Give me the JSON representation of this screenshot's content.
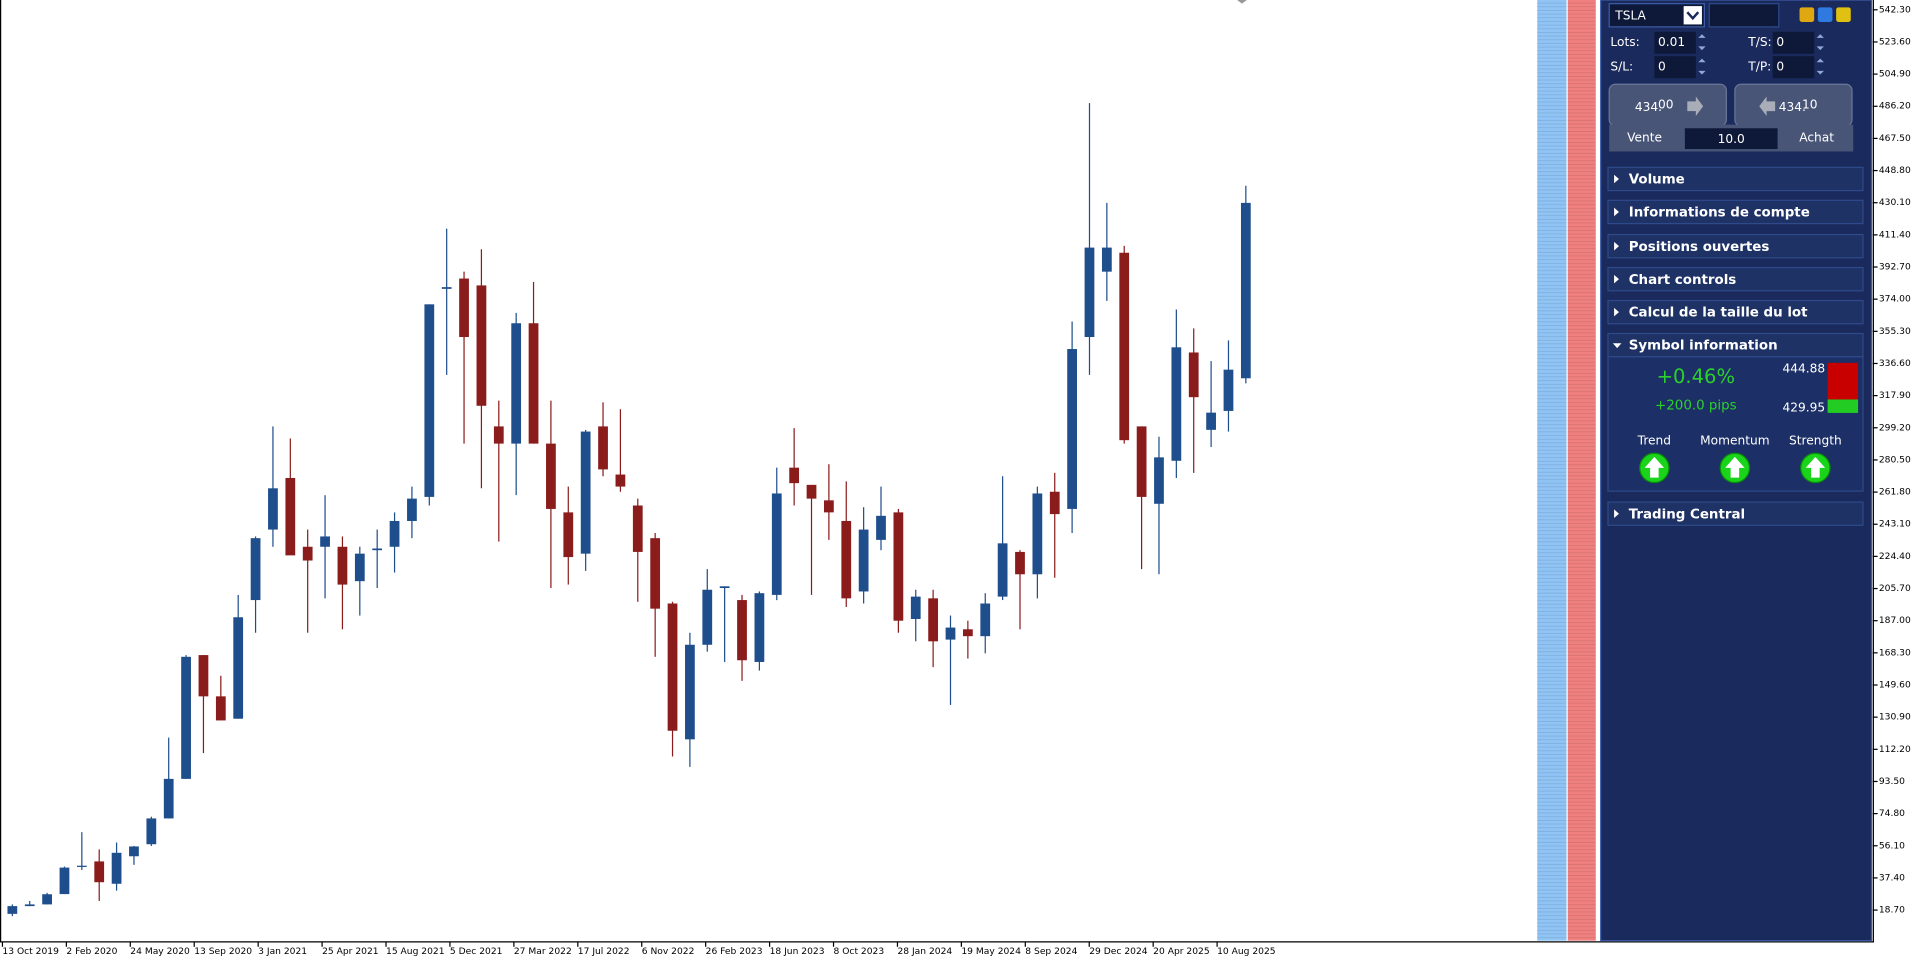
{
  "chart_data": {
    "type": "candlestick",
    "up_color": "#1f4e8c",
    "down_color": "#8b1c1c",
    "open": [
      16.5,
      21,
      22,
      28,
      44,
      47,
      34,
      50,
      57,
      72,
      95,
      167,
      143,
      130,
      199,
      240,
      270,
      230,
      230,
      230,
      210,
      228,
      230,
      245,
      259,
      380,
      386,
      382,
      300,
      290,
      360,
      290,
      250,
      226,
      300,
      272,
      254,
      235,
      197,
      118,
      173,
      206,
      199,
      163,
      202,
      276,
      266,
      257,
      245,
      204,
      234,
      250,
      188,
      200,
      176,
      182,
      178,
      201,
      227,
      214,
      262,
      252,
      352,
      390,
      401,
      300,
      255,
      280,
      343,
      298,
      309,
      328
    ],
    "high": [
      22,
      24,
      28.7,
      44,
      64,
      54,
      58,
      56,
      73,
      119,
      167,
      167,
      155,
      202,
      236,
      300,
      293,
      240,
      260,
      236,
      230,
      240,
      250,
      265,
      371,
      415,
      390,
      403,
      315,
      366,
      384,
      315,
      265,
      298,
      314,
      310,
      258,
      238,
      198,
      180,
      217,
      207,
      202,
      204,
      276,
      299,
      266,
      278,
      268,
      253,
      265,
      252,
      205,
      205,
      190,
      187,
      203,
      271,
      228,
      265,
      273,
      361,
      488,
      430,
      405,
      300,
      294,
      368,
      357,
      338,
      350,
      440
    ],
    "low": [
      15.2,
      21,
      22,
      28,
      42,
      24,
      30,
      45,
      56,
      72,
      95,
      110,
      129,
      130,
      180,
      230,
      226,
      180,
      200,
      182,
      190,
      206,
      215,
      235,
      254,
      330,
      290,
      264,
      233,
      260,
      290,
      206,
      208,
      216,
      271,
      262,
      198,
      166,
      108,
      102,
      169,
      163,
      152,
      158,
      199,
      254,
      202,
      234,
      195,
      197,
      228,
      180,
      175,
      160,
      138,
      165,
      168,
      199,
      182,
      200,
      212,
      238,
      330,
      373,
      290,
      217,
      214,
      270,
      273,
      288,
      297,
      325
    ],
    "close": [
      21,
      22,
      27.9,
      43.4,
      44.5,
      34.9,
      52,
      55.7,
      72,
      95,
      166,
      143,
      129,
      189,
      235,
      264,
      225,
      222,
      236,
      208,
      226,
      229,
      245,
      258,
      371,
      381,
      352,
      312,
      290,
      360,
      290,
      252,
      224,
      297,
      275,
      265,
      227,
      194,
      123,
      173,
      205,
      207,
      164,
      203,
      261,
      267,
      258,
      250,
      200,
      240,
      248,
      187,
      201,
      175,
      183,
      178,
      197,
      232,
      214,
      261,
      249,
      345,
      404,
      404,
      292,
      259,
      282,
      346,
      317,
      308,
      333,
      430
    ],
    "ylim": [
      0.9,
      548
    ],
    "yticks": [
      {
        "value": 18.7,
        "label": "18.70"
      },
      {
        "value": 37.4,
        "label": "37.40"
      },
      {
        "value": 56.1,
        "label": "56.10"
      },
      {
        "value": 74.8,
        "label": "74.80"
      },
      {
        "value": 93.5,
        "label": "93.50"
      },
      {
        "value": 112.2,
        "label": "112.20"
      },
      {
        "value": 130.9,
        "label": "130.90"
      },
      {
        "value": 149.6,
        "label": "149.60"
      },
      {
        "value": 168.3,
        "label": "168.30"
      },
      {
        "value": 187,
        "label": "187.00"
      },
      {
        "value": 205.7,
        "label": "205.70"
      },
      {
        "value": 224.4,
        "label": "224.40"
      },
      {
        "value": 243.1,
        "label": "243.10"
      },
      {
        "value": 261.8,
        "label": "261.80"
      },
      {
        "value": 280.5,
        "label": "280.50"
      },
      {
        "value": 299.2,
        "label": "299.20"
      },
      {
        "value": 317.9,
        "label": "317.90"
      },
      {
        "value": 336.6,
        "label": "336.60"
      },
      {
        "value": 355.3,
        "label": "355.30"
      },
      {
        "value": 374,
        "label": "374.00"
      },
      {
        "value": 392.7,
        "label": "392.70"
      },
      {
        "value": 411.4,
        "label": "411.40"
      },
      {
        "value": 430.1,
        "label": "430.10"
      },
      {
        "value": 448.8,
        "label": "448.80"
      },
      {
        "value": 467.5,
        "label": "467.50"
      },
      {
        "value": 486.2,
        "label": "486.20"
      },
      {
        "value": 504.9,
        "label": "504.90"
      },
      {
        "value": 523.6,
        "label": "523.60"
      },
      {
        "value": 542.3,
        "label": "542.30"
      }
    ],
    "x_labels": [
      "13 Oct 2019",
      "2 Feb 2020",
      "24 May 2020",
      "13 Sep 2020",
      "3 Jan 2021",
      "25 Apr 2021",
      "15 Aug 2021",
      "5 Dec 2021",
      "27 Mar 2022",
      "17 Jul 2022",
      "6 Nov 2022",
      "26 Feb 2023",
      "18 Jun 2023",
      "8 Oct 2023",
      "28 Jan 2024",
      "19 May 2024",
      "8 Sep 2024",
      "29 Dec 2024",
      "20 Apr 2025",
      "10 Aug 2025"
    ]
  },
  "panel": {
    "symbol": "TSLA",
    "lots_label": "Lots:",
    "lots": "0.01",
    "ts_label": "T/S:",
    "ts": "0",
    "sl_label": "S/L:",
    "sl": "0",
    "tp_label": "T/P:",
    "tp": "0",
    "sell": {
      "main": "434.",
      "pips": "00",
      "label": "Vente"
    },
    "buy": {
      "main": "434.",
      "pips": "10",
      "label": "Achat"
    },
    "spread": "10.0",
    "sections": [
      "Volume",
      "Informations de compte",
      "Positions ouvertes",
      "Chart controls",
      "Calcul de la taille du lot",
      "Symbol information"
    ],
    "symbol_info": {
      "change": "+0.46%",
      "pips": "+200.0 pips",
      "high": "444.88",
      "low": "429.95",
      "indicators": [
        "Trend",
        "Momentum",
        "Strength"
      ]
    },
    "last_section": "Trading Central"
  }
}
